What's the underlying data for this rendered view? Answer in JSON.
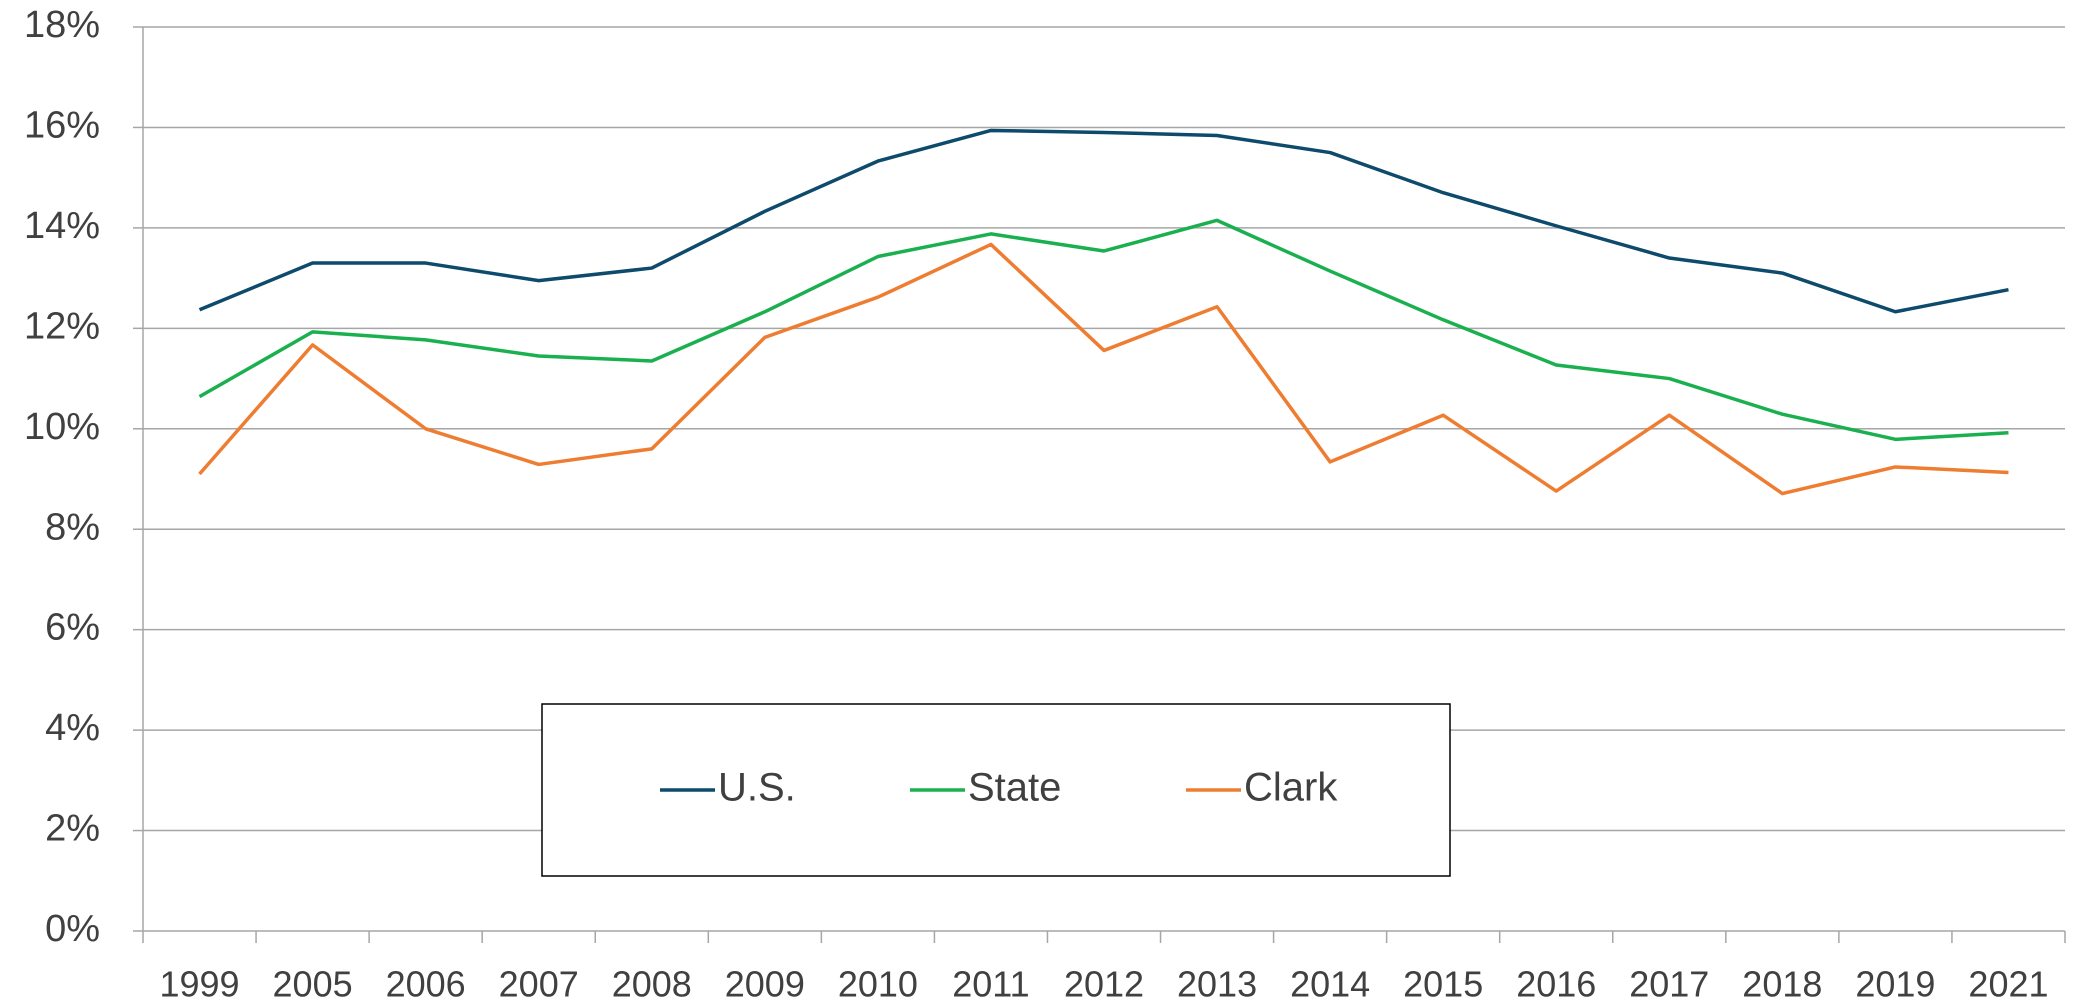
{
  "chart_data": {
    "type": "line",
    "categories": [
      "1999",
      "2005",
      "2006",
      "2007",
      "2008",
      "2009",
      "2010",
      "2011",
      "2012",
      "2013",
      "2014",
      "2015",
      "2016",
      "2017",
      "2018",
      "2019",
      "2021"
    ],
    "series": [
      {
        "name": "U.S.",
        "color": "#0d4a6b",
        "values": [
          12.37,
          13.3,
          13.3,
          12.95,
          13.2,
          14.33,
          15.33,
          15.94,
          15.9,
          15.84,
          15.5,
          14.7,
          14.04,
          13.4,
          13.1,
          12.33,
          12.77
        ]
      },
      {
        "name": "State",
        "color": "#1bb04f",
        "values": [
          10.64,
          11.93,
          11.77,
          11.45,
          11.35,
          12.33,
          13.43,
          13.88,
          13.54,
          14.15,
          13.14,
          12.17,
          11.27,
          11.0,
          10.29,
          9.79,
          9.92
        ]
      },
      {
        "name": "Clark",
        "color": "#ee7d31",
        "values": [
          9.1,
          11.67,
          10.0,
          9.29,
          9.6,
          11.82,
          12.62,
          13.67,
          11.56,
          12.43,
          9.34,
          10.27,
          8.76,
          10.27,
          8.71,
          9.24,
          9.13
        ]
      }
    ],
    "ylim": [
      0,
      18
    ],
    "yticks": [
      {
        "value": 0,
        "label": "0%"
      },
      {
        "value": 2,
        "label": "2%"
      },
      {
        "value": 4,
        "label": "4%"
      },
      {
        "value": 6,
        "label": "6%"
      },
      {
        "value": 8,
        "label": "8%"
      },
      {
        "value": 10,
        "label": "10%"
      },
      {
        "value": 12,
        "label": "12%"
      },
      {
        "value": 14,
        "label": "14%"
      },
      {
        "value": 16,
        "label": "16%"
      },
      {
        "value": 18,
        "label": "18%"
      }
    ],
    "grid": true,
    "legend": "lower-center"
  }
}
